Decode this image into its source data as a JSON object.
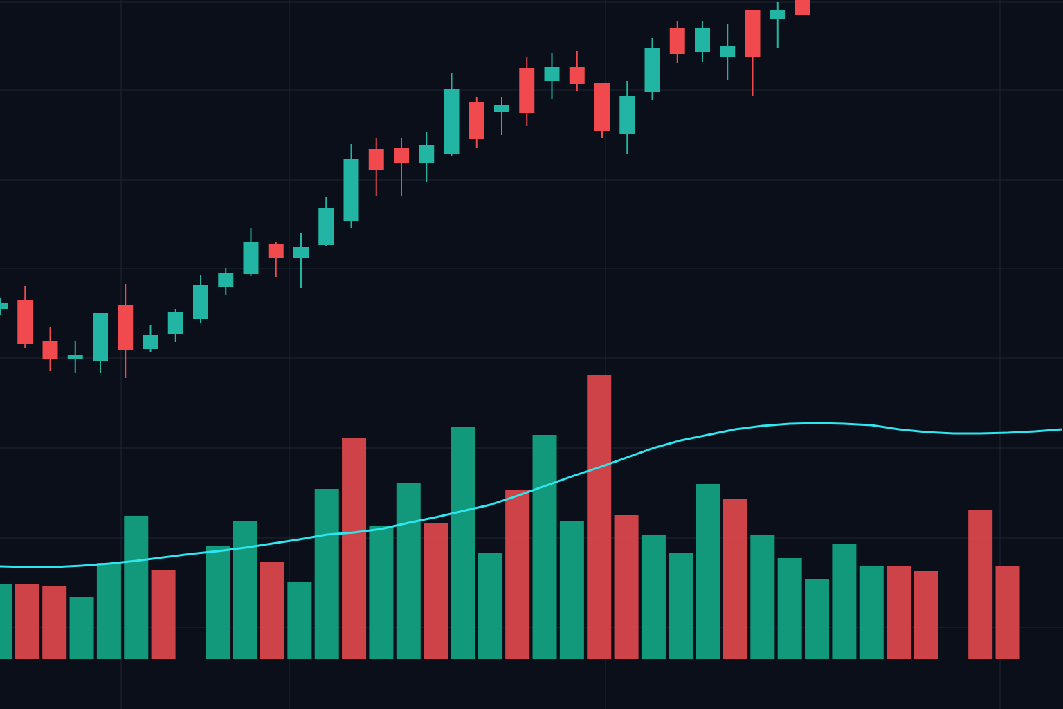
{
  "chart_data": [
    {
      "type": "candlestick",
      "open": [
        577,
        591,
        532,
        505,
        503,
        584,
        520,
        542,
        563,
        610,
        628,
        672,
        652,
        670,
        705,
        809,
        810,
        789,
        802,
        877,
        862,
        926,
        907,
        927,
        904,
        831,
        891,
        984,
        949,
        941,
        1009,
        996,
        1024
      ],
      "high": [
        594,
        611,
        552,
        531,
        572,
        614,
        554,
        577,
        627,
        637,
        694,
        674,
        688,
        740,
        816,
        824,
        825,
        833,
        918,
        884,
        884,
        941,
        948,
        951,
        904,
        907,
        969,
        993,
        994,
        989,
        1009,
        1021,
        1024
      ],
      "low": [
        569,
        521,
        488,
        486,
        486,
        478,
        516,
        530,
        558,
        598,
        626,
        624,
        608,
        668,
        694,
        741,
        741,
        761,
        799,
        810,
        829,
        842,
        881,
        893,
        824,
        802,
        879,
        933,
        934,
        908,
        886,
        954,
        1002
      ],
      "close": [
        587,
        527,
        505,
        511,
        572,
        518,
        540,
        573,
        613,
        630,
        674,
        651,
        667,
        724,
        794,
        779,
        789,
        814,
        896,
        823,
        872,
        861,
        927,
        903,
        835,
        885,
        955,
        946,
        984,
        957,
        941,
        1009,
        1002
      ],
      "up_color": "#22b5a3",
      "down_color": "#f04a4f",
      "ylim": [
        464,
        1024
      ],
      "yticks": [
        507,
        636,
        764,
        894,
        1021
      ],
      "grid": true
    },
    {
      "type": "bar",
      "series": [
        {
          "type": "bar",
          "values": [
            109,
            109,
            106,
            90,
            139,
            207,
            129,
            null,
            163,
            200,
            140,
            112,
            246,
            319,
            192,
            254,
            197,
            336,
            154,
            245,
            324,
            199,
            411,
            208,
            179,
            154,
            253,
            232,
            179,
            146,
            116,
            166,
            135,
            135,
            127,
            null,
            216,
            135,
            null,
            null
          ],
          "colors": [
            "#13a07f",
            "#d9474b",
            "#d9474b",
            "#13a07f",
            "#13a07f",
            "#13a07f",
            "#d9474b",
            null,
            "#13a07f",
            "#13a07f",
            "#d9474b",
            "#13a07f",
            "#13a07f",
            "#d9474b",
            "#13a07f",
            "#13a07f",
            "#d9474b",
            "#13a07f",
            "#13a07f",
            "#d9474b",
            "#13a07f",
            "#13a07f",
            "#d9474b",
            "#d9474b",
            "#13a07f",
            "#13a07f",
            "#13a07f",
            "#d9474b",
            "#13a07f",
            "#13a07f",
            "#13a07f",
            "#13a07f",
            "#13a07f",
            "#d9474b",
            "#d9474b",
            null,
            "#d9474b",
            "#d9474b",
            null,
            null
          ]
        },
        {
          "type": "line",
          "color": "#2ee6f0",
          "values": [
            134,
            133,
            133,
            135,
            138,
            142,
            147,
            152,
            156,
            161,
            167,
            173,
            180,
            183,
            188,
            197,
            205,
            214,
            223,
            236,
            250,
            264,
            277,
            291,
            305,
            316,
            324,
            332,
            337,
            340,
            341,
            340,
            338,
            332,
            328,
            326,
            326,
            327,
            329,
            332
          ]
        }
      ],
      "ylim": [
        0,
        952
      ],
      "yticks": [
        46,
        175,
        305
      ],
      "grid": true
    }
  ]
}
